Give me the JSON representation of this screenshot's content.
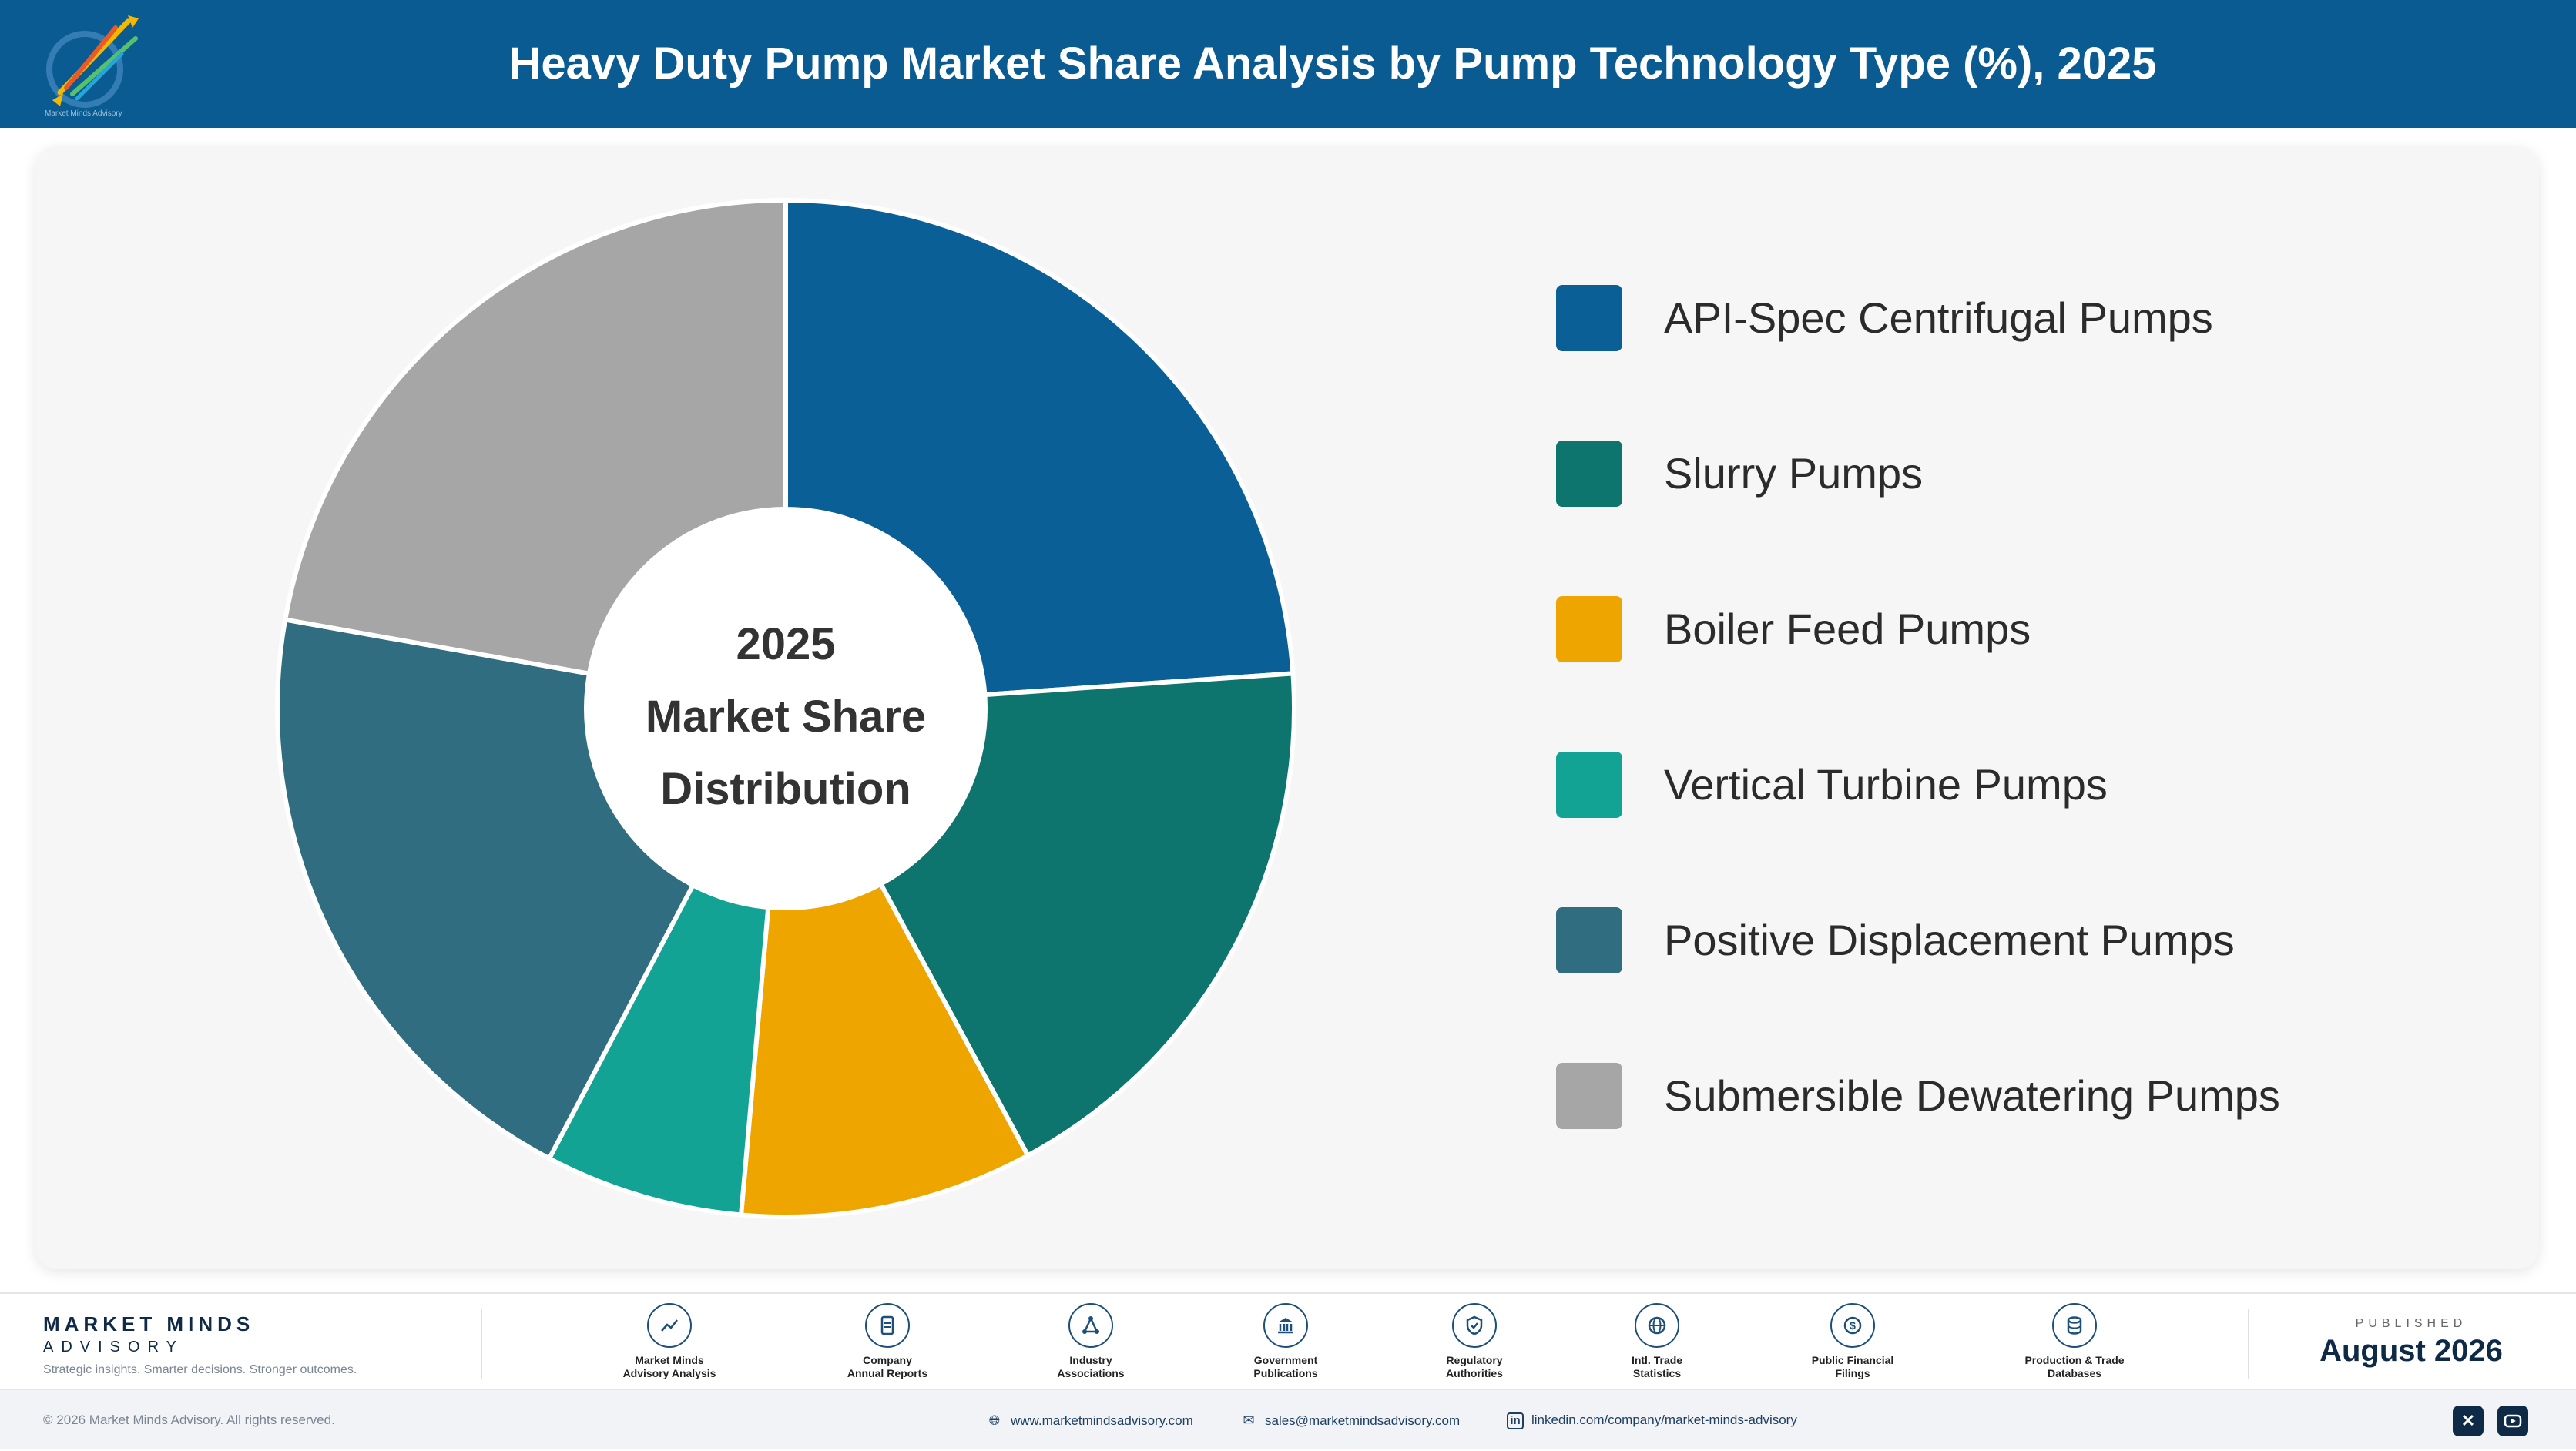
{
  "header": {
    "title": "Heavy Duty Pump Market Share Analysis by Pump Technology Type (%), 2025",
    "logo_text": "Market Minds Advisory"
  },
  "center_label": {
    "line1": "2025",
    "line2": "Market Share",
    "line3": "Distribution"
  },
  "chart_data": {
    "type": "pie",
    "title": "Heavy Duty Pump Market Share Analysis by Pump Technology Type (%), 2025",
    "categories": [
      "API-Spec Centrifugal Pumps",
      "Slurry Pumps",
      "Boiler Feed Pumps",
      "Vertical Turbine Pumps",
      "Positive Displacement Pumps",
      "Submersible Dewatering Pumps"
    ],
    "values": [
      23.9,
      18.2,
      9.3,
      6.3,
      20.1,
      22.2
    ],
    "colors": [
      "#0a5f97",
      "#0d746e",
      "#eea500",
      "#12a394",
      "#306d80",
      "#a6a6a6"
    ],
    "legend_position": "right",
    "donut": true
  },
  "footer": {
    "brand_name": "MARKET MINDS",
    "brand_sub": "ADVISORY",
    "brand_tag": "Strategic insights. Smarter decisions. Stronger outcomes.",
    "sources": [
      {
        "line1": "Market Minds",
        "line2": "Advisory Analysis",
        "icon": "trend-icon"
      },
      {
        "line1": "Company",
        "line2": "Annual Reports",
        "icon": "document-icon"
      },
      {
        "line1": "Industry",
        "line2": "Associations",
        "icon": "network-icon"
      },
      {
        "line1": "Government",
        "line2": "Publications",
        "icon": "bank-icon"
      },
      {
        "line1": "Regulatory",
        "line2": "Authorities",
        "icon": "shield-icon"
      },
      {
        "line1": "Intl. Trade",
        "line2": "Statistics",
        "icon": "globe-icon"
      },
      {
        "line1": "Public Financial",
        "line2": "Filings",
        "icon": "dollar-icon"
      },
      {
        "line1": "Production & Trade",
        "line2": "Databases",
        "icon": "database-icon"
      }
    ],
    "published_caption": "PUBLISHED",
    "published_date": "August 2026"
  },
  "bottom_bar": {
    "copyright": "© 2026 Market Minds Advisory. All rights reserved.",
    "website": "www.marketmindsadvisory.com",
    "email": "sales@marketmindsadvisory.com",
    "linkedin": "linkedin.com/company/market-minds-advisory"
  }
}
